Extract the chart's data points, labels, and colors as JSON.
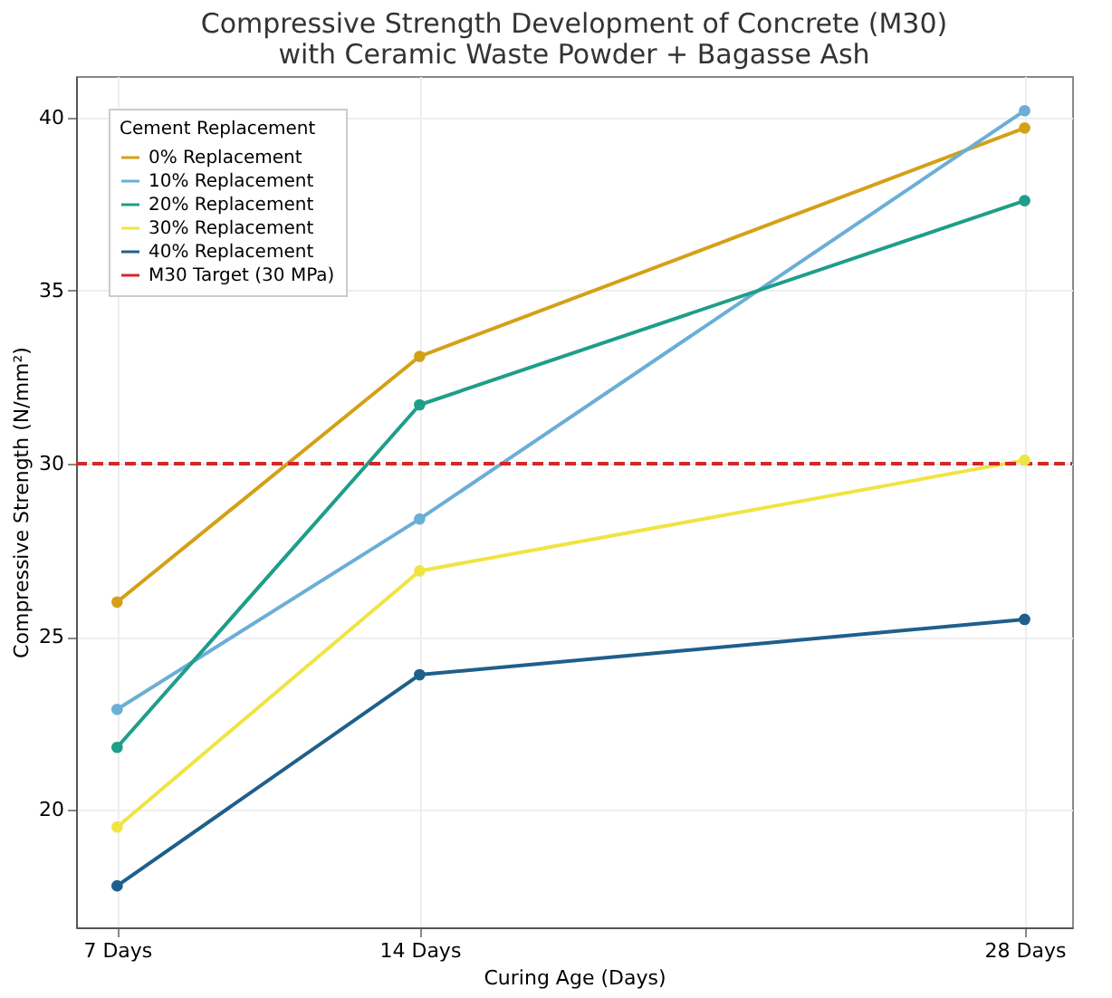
{
  "chart_data": {
    "type": "line",
    "title": "Compressive Strength Development of Concrete (M30)\nwith Ceramic Waste Powder + Bagasse Ash",
    "xlabel": "Curing Age (Days)",
    "ylabel": "Compressive Strength (N/mm²)",
    "legend_title": "Cement Replacement",
    "x": [
      7,
      14,
      28
    ],
    "xlim": [
      6.05,
      29.1
    ],
    "xticks": [
      {
        "value": 7,
        "label": "7 Days"
      },
      {
        "value": 14,
        "label": "14 Days"
      },
      {
        "value": 28,
        "label": "28 Days"
      }
    ],
    "ylim": [
      16.6,
      41.2
    ],
    "yticks": [
      20,
      25,
      30,
      35,
      40
    ],
    "series": [
      {
        "name": "0% Replacement",
        "color": "#d4a017",
        "values": [
          26.0,
          33.1,
          39.7
        ]
      },
      {
        "name": "10% Replacement",
        "color": "#6baed6",
        "values": [
          22.9,
          28.4,
          40.2
        ]
      },
      {
        "name": "20% Replacement",
        "color": "#1f9e89",
        "values": [
          21.8,
          31.7,
          37.6
        ]
      },
      {
        "name": "30% Replacement",
        "color": "#f0e442",
        "values": [
          19.5,
          26.9,
          30.1
        ]
      },
      {
        "name": "40% Replacement",
        "color": "#1f5f8b",
        "values": [
          17.8,
          23.9,
          25.5
        ]
      }
    ],
    "ref_lines": [
      {
        "axis": "y",
        "value": 30,
        "label": "M30 Target (30 MPa)",
        "color": "#d62728",
        "line_style": "dashed"
      }
    ],
    "grid": true,
    "legend": "top left",
    "marker": "circle",
    "line_style": "solid"
  }
}
